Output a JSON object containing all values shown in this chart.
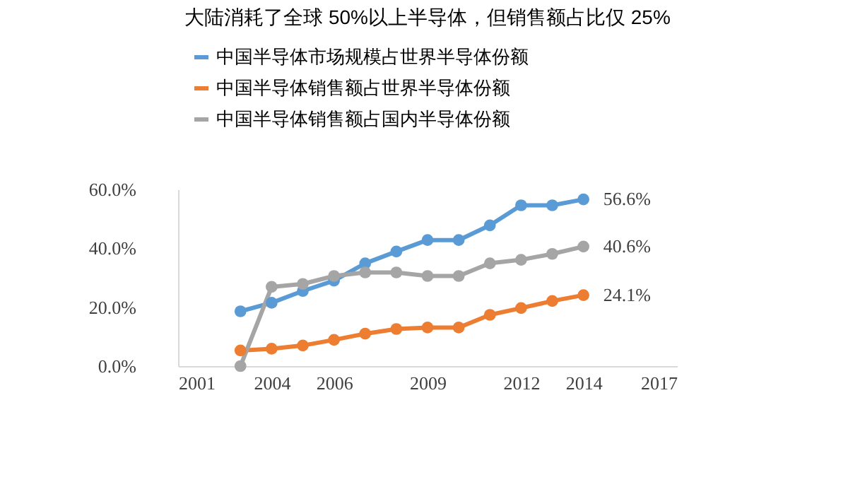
{
  "chart_data": {
    "type": "line",
    "title": "大陆消耗了全球 50%以上半导体，但销售额占比仅 25%",
    "x": [
      2003,
      2004,
      2005,
      2006,
      2007,
      2008,
      2009,
      2010,
      2011,
      2012,
      2013,
      2014
    ],
    "series": [
      {
        "name": "中国半导体市场规模占世界半导体份额",
        "color": "#5b9bd5",
        "values": [
          18.6,
          21.5,
          25.5,
          29.0,
          34.9,
          38.9,
          42.8,
          42.8,
          47.8,
          54.6,
          54.6,
          56.6
        ],
        "value_labels": [
          null,
          null,
          null,
          null,
          null,
          null,
          null,
          null,
          null,
          null,
          null,
          "56.6%"
        ]
      },
      {
        "name": "中国半导体销售额占世界半导体份额",
        "color": "#ed7d31",
        "values": [
          5.3,
          5.9,
          7.0,
          8.9,
          11.0,
          12.6,
          13.1,
          13.1,
          17.4,
          19.7,
          22.1,
          24.1
        ],
        "value_labels": [
          null,
          null,
          null,
          null,
          null,
          null,
          null,
          null,
          null,
          null,
          null,
          "24.1%"
        ]
      },
      {
        "name": "中国半导体销售额占国内半导体份额",
        "color": "#a5a5a5",
        "values": [
          0,
          26.9,
          27.9,
          30.6,
          31.8,
          31.8,
          30.6,
          30.6,
          34.9,
          36.1,
          38.1,
          40.6
        ],
        "value_labels": [
          null,
          null,
          null,
          null,
          null,
          null,
          null,
          null,
          null,
          null,
          null,
          "40.6%"
        ]
      }
    ],
    "xlim": [
      2001,
      2017
    ],
    "xticks": [
      2001,
      2004,
      2006,
      2009,
      2012,
      2014,
      2017
    ],
    "ylim": [
      0,
      60
    ],
    "yticks": [
      {
        "value": 0,
        "label": "0.0%"
      },
      {
        "value": 20,
        "label": "20.0%"
      },
      {
        "value": 40,
        "label": "40.0%"
      },
      {
        "value": 60,
        "label": "60.0%"
      }
    ],
    "grid": false,
    "legend": "top left",
    "marker": "circle",
    "line_style": "solid"
  }
}
